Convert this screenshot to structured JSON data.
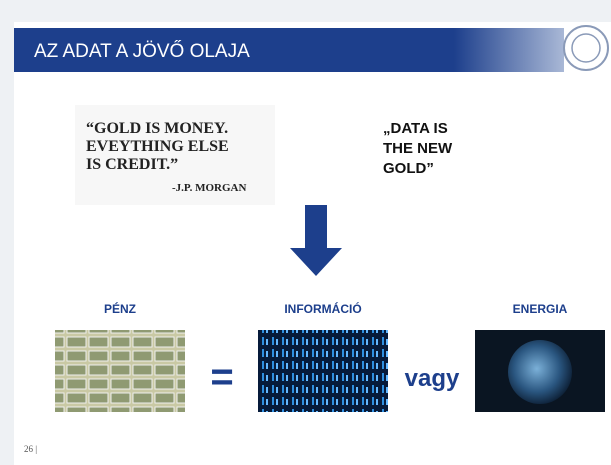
{
  "header": {
    "title": "AZ ADAT A JÖVŐ OLAJA"
  },
  "quote": {
    "lines": [
      "“GOLD IS MONEY.",
      "EVEYTHING ELSE",
      "IS CREDIT.”"
    ],
    "author": "-J.P. MORGAN"
  },
  "claim": {
    "lines": [
      "„DATA IS",
      "THE NEW",
      "GOLD”"
    ]
  },
  "items": [
    {
      "label": "PÉNZ"
    },
    {
      "label": "INFORMÁCIÓ"
    },
    {
      "label": "ENERGIA"
    }
  ],
  "equals": "=",
  "or": "vagy",
  "page_number": "26 |"
}
